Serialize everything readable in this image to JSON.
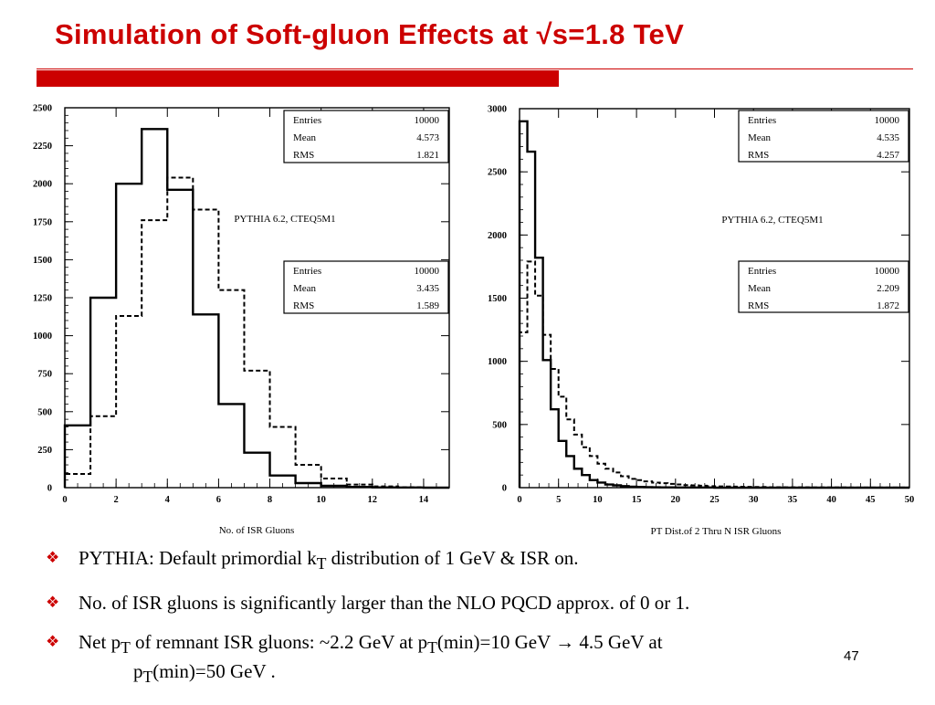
{
  "title": "Simulation of Soft-gluon Effects at √s=1.8 TeV",
  "page_number": "47",
  "colors": {
    "accent": "#cc0000",
    "text": "#000000"
  },
  "bullets": [
    {
      "icon": "diamond-bullet-icon",
      "parts": [
        "PYTHIA: Default primordial k",
        "T",
        " distribution of 1 GeV & ISR on."
      ]
    },
    {
      "icon": "diamond-bullet-icon",
      "parts": [
        "No. of ISR gluons is significantly larger than the NLO PQCD approx. of 0 or 1."
      ]
    },
    {
      "icon": "diamond-bullet-icon",
      "parts": [
        "Net p",
        "T",
        " of remnant ISR gluons: ~2.2 GeV at p",
        "T",
        "(min)=10 GeV ",
        "→",
        " 4.5 GeV  at",
        "p",
        "T",
        "(min)=50 GeV ."
      ]
    }
  ],
  "chart_data": [
    {
      "type": "histogram",
      "xlabel": "No. of ISR Gluons",
      "ylabel": "",
      "xlim": [
        0,
        15
      ],
      "ylim": [
        0,
        2500
      ],
      "xticks": [
        0,
        2,
        4,
        6,
        8,
        10,
        12,
        14
      ],
      "yticks": [
        0,
        250,
        500,
        750,
        1000,
        1250,
        1500,
        1750,
        2000,
        2250,
        2500
      ],
      "annotation": "PYTHIA 6.2, CTEQ5M1",
      "series": [
        {
          "line": "solid",
          "bins": [
            0,
            1,
            2,
            3,
            4,
            5,
            6,
            7,
            8,
            9,
            10,
            11,
            12,
            13,
            14,
            15
          ],
          "values": [
            410,
            1250,
            2000,
            2360,
            1960,
            1140,
            550,
            230,
            80,
            30,
            12,
            5,
            2,
            1,
            0
          ],
          "stats": {
            "Entries": "10000",
            "Mean": "4.573",
            "RMS": "1.821"
          }
        },
        {
          "line": "dashed",
          "bins": [
            0,
            1,
            2,
            3,
            4,
            5,
            6,
            7,
            8,
            9,
            10,
            11,
            12,
            13,
            14,
            15
          ],
          "values": [
            90,
            470,
            1130,
            1760,
            2040,
            1830,
            1300,
            770,
            400,
            150,
            60,
            20,
            8,
            3,
            0
          ],
          "stats": {
            "Entries": "10000",
            "Mean": "3.435",
            "RMS": "1.589"
          }
        }
      ]
    },
    {
      "type": "histogram",
      "xlabel": "PT Dist.of 2 Thru N ISR Gluons",
      "ylabel": "",
      "xlim": [
        0,
        50
      ],
      "ylim": [
        0,
        3000
      ],
      "xticks": [
        0,
        5,
        10,
        15,
        20,
        25,
        30,
        35,
        40,
        45,
        50
      ],
      "yticks": [
        0,
        500,
        1000,
        1500,
        2000,
        2500,
        3000
      ],
      "annotation": "PYTHIA 6.2, CTEQ5M1",
      "series": [
        {
          "line": "solid",
          "bin_width": 1,
          "values": [
            2900,
            2660,
            1820,
            1010,
            620,
            370,
            250,
            150,
            100,
            60,
            40,
            25,
            18,
            12,
            8,
            6,
            4,
            3,
            2,
            2,
            1,
            1,
            1,
            1,
            1,
            0,
            0,
            0,
            0,
            0,
            0,
            0,
            0,
            0,
            0,
            0,
            0,
            0,
            0,
            0,
            0,
            0,
            0,
            0,
            0,
            0,
            0,
            0,
            0,
            0
          ],
          "stats": {
            "Entries": "10000",
            "Mean": "4.535",
            "RMS": "4.257"
          }
        },
        {
          "line": "dashed",
          "bin_width": 1,
          "values": [
            1230,
            1790,
            1520,
            1210,
            940,
            720,
            540,
            420,
            320,
            250,
            190,
            150,
            120,
            90,
            70,
            60,
            50,
            40,
            35,
            30,
            25,
            20,
            18,
            15,
            12,
            10,
            9,
            8,
            7,
            6,
            5,
            5,
            4,
            4,
            3,
            3,
            3,
            2,
            2,
            2,
            2,
            2,
            1,
            1,
            1,
            1,
            1,
            1,
            1,
            1
          ],
          "stats": {
            "Entries": "10000",
            "Mean": "2.209",
            "RMS": "1.872"
          }
        }
      ]
    }
  ]
}
